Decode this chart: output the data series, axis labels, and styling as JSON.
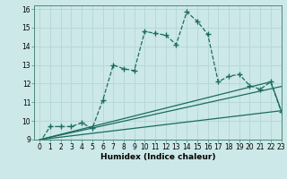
{
  "xlabel": "Humidex (Indice chaleur)",
  "xlim": [
    -0.5,
    23
  ],
  "ylim": [
    9,
    16.2
  ],
  "xticks": [
    0,
    1,
    2,
    3,
    4,
    5,
    6,
    7,
    8,
    9,
    10,
    11,
    12,
    13,
    14,
    15,
    16,
    17,
    18,
    19,
    20,
    21,
    22,
    23
  ],
  "yticks": [
    9,
    10,
    11,
    12,
    13,
    14,
    15,
    16
  ],
  "bg_color": "#cce8e8",
  "line_color": "#1a6b5e",
  "grid_color": "#b8d8d8",
  "main_series": {
    "x": [
      0,
      1,
      2,
      3,
      4,
      5,
      6,
      7,
      8,
      9,
      10,
      11,
      12,
      13,
      14,
      15,
      16,
      17,
      18,
      19,
      20,
      21,
      22,
      23
    ],
    "y": [
      8.85,
      9.7,
      9.7,
      9.7,
      9.9,
      9.6,
      11.1,
      13.0,
      12.8,
      12.7,
      14.8,
      14.7,
      14.6,
      14.1,
      15.85,
      15.35,
      14.65,
      12.1,
      12.4,
      12.5,
      11.9,
      11.7,
      12.1,
      10.5
    ]
  },
  "ref_lines": [
    {
      "x": [
        0,
        23
      ],
      "y": [
        9.0,
        10.55
      ]
    },
    {
      "x": [
        0,
        23
      ],
      "y": [
        9.0,
        11.85
      ]
    },
    {
      "x": [
        0,
        22,
        23
      ],
      "y": [
        9.0,
        12.1,
        10.55
      ]
    }
  ]
}
